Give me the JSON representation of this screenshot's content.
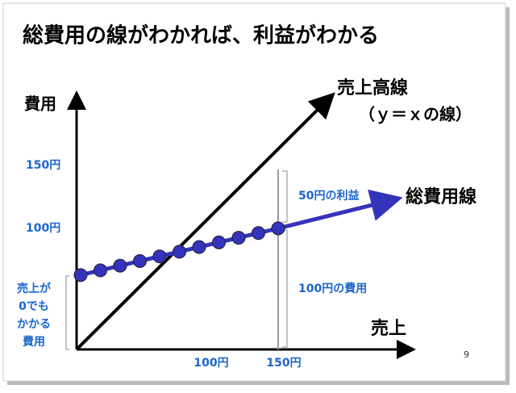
{
  "title": "総費用の線がわかれば、利益がわかる",
  "y_axis_label": "費用",
  "x_axis_label": "売上",
  "y_ticks": [
    "150円",
    "100円"
  ],
  "x_ticks": [
    "100円",
    "150円"
  ],
  "sales_line": {
    "label": "売上高線",
    "note": "（ｙ＝ｘの線）"
  },
  "total_cost_line": {
    "label": "総費用線"
  },
  "annotations": {
    "profit": "50円の利益",
    "cost": "100円の費用",
    "fixed_cost": [
      "売上が",
      "0でも",
      "かかる",
      "費用"
    ]
  },
  "page_number": "9"
}
